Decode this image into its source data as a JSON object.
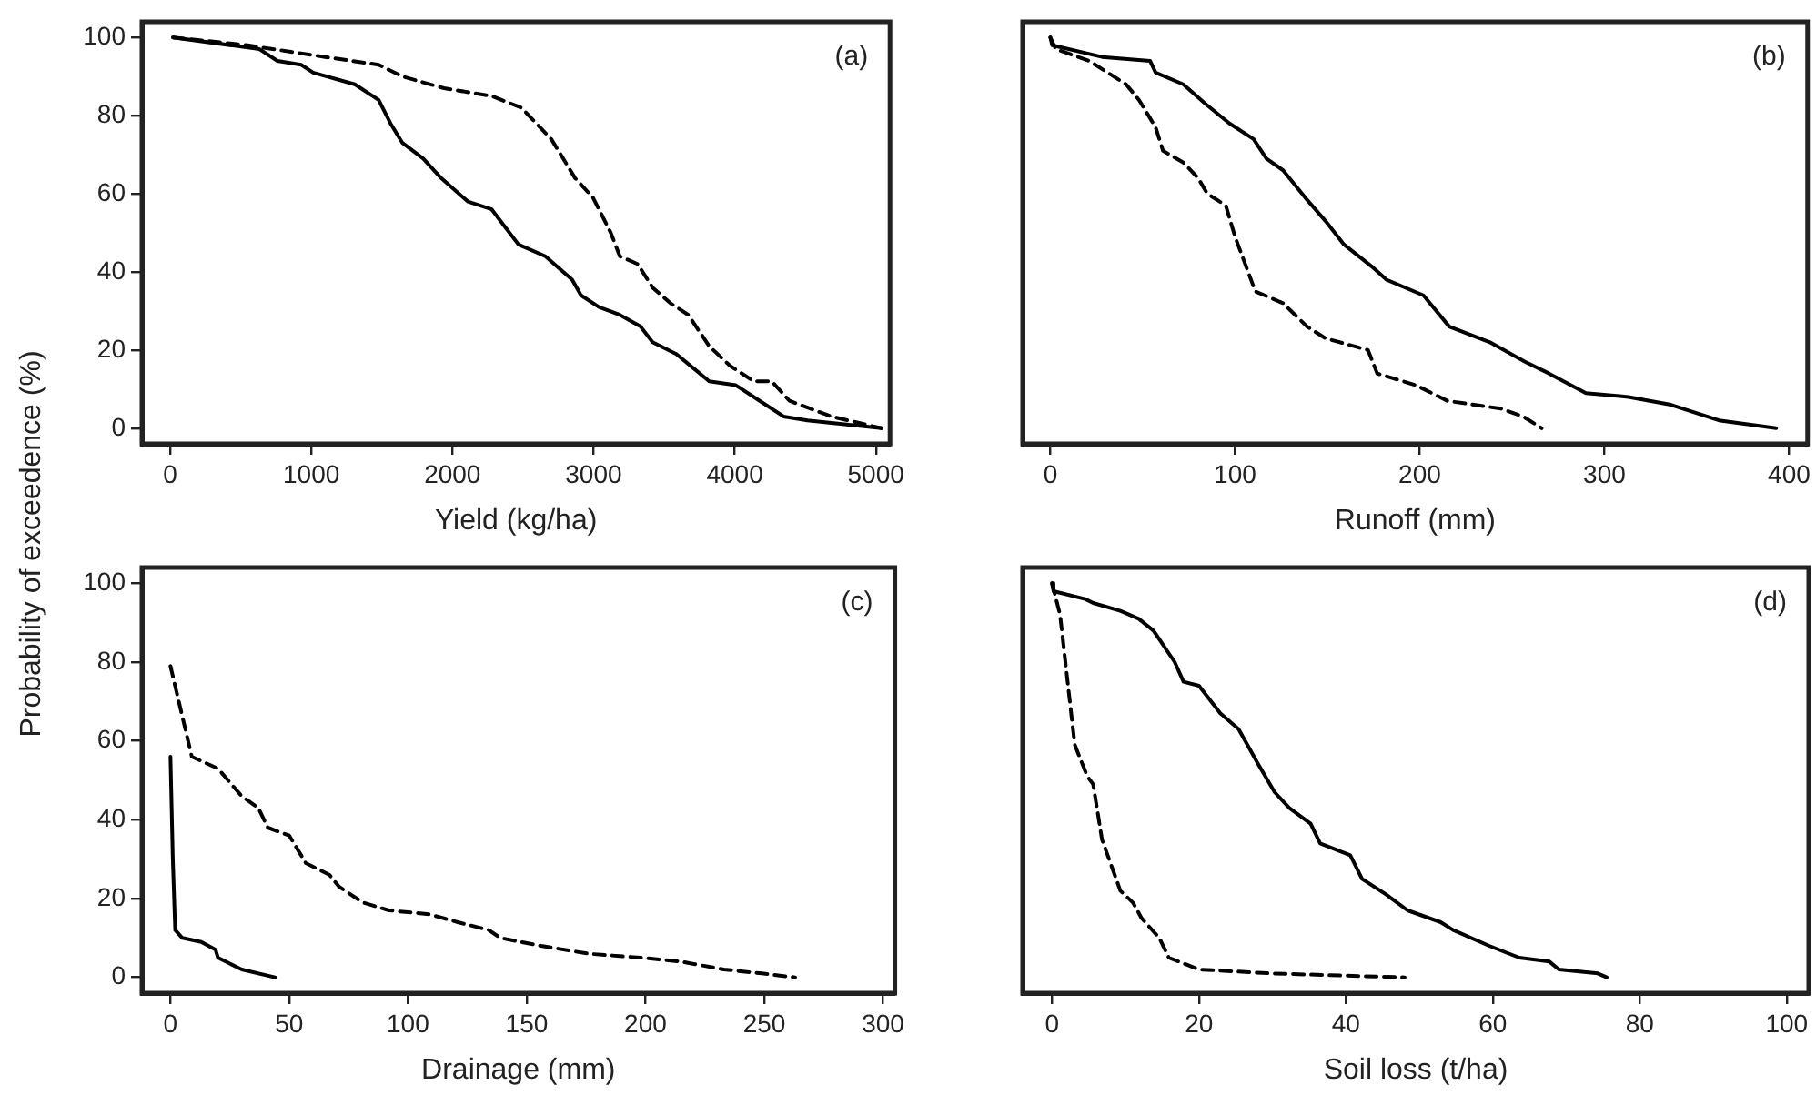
{
  "chart_data": [
    {
      "type": "line",
      "xlabel": "Yield (kg/ha)",
      "ylabel": "Probability of exceedence (%)",
      "annotations": [
        "(a)"
      ],
      "xlim": [
        -200,
        5100
      ],
      "xticks": [
        0,
        1000,
        2000,
        3000,
        4000,
        5000
      ],
      "ylim": [
        -4,
        104
      ],
      "yticks": [
        0,
        20,
        40,
        60,
        80,
        100
      ],
      "series": [
        {
          "color": "#000000",
          "line_style": "solid",
          "x": [
            20,
            633,
            760,
            928,
            1013,
            1308,
            1477,
            1561,
            1646,
            1793,
            1920,
            2110,
            2278,
            2468,
            2658,
            2848,
            2911,
            3038,
            3186,
            3333,
            3418,
            3586,
            3819,
            4008,
            4177,
            4346,
            4515,
            5040
          ],
          "values": [
            100,
            97,
            94,
            93,
            91,
            88,
            84,
            78,
            73,
            69,
            64,
            58,
            56,
            47,
            44,
            38,
            34,
            31,
            29,
            26,
            22,
            19,
            12,
            11,
            7,
            3,
            2,
            0
          ]
        },
        {
          "color": "#000000",
          "line_style": "dashed",
          "x": [
            20,
            549,
            1097,
            1477,
            1646,
            1941,
            2278,
            2489,
            2700,
            2869,
            2996,
            3122,
            3186,
            3312,
            3418,
            3544,
            3671,
            3819,
            3966,
            4135,
            4262,
            4388,
            4684,
            5040
          ],
          "values": [
            100,
            98,
            95,
            93,
            90,
            87,
            85,
            82,
            74,
            64,
            59,
            50,
            44,
            42,
            36,
            32,
            29,
            21,
            16,
            12,
            12,
            7,
            3,
            0
          ]
        }
      ]
    },
    {
      "type": "line",
      "xlabel": "Runoff (mm)",
      "annotations": [
        "(b)"
      ],
      "tick_labels": "x",
      "xlim": [
        -15,
        410
      ],
      "xticks": [
        0,
        100,
        200,
        300,
        400
      ],
      "ylim": [
        -4,
        104
      ],
      "series": [
        {
          "color": "#000000",
          "line_style": "solid",
          "x": [
            0,
            1,
            28,
            54,
            57,
            72,
            84,
            97,
            110,
            117,
            126,
            138,
            149,
            159,
            175,
            182,
            202,
            216,
            238,
            257,
            270,
            290,
            313,
            336,
            362,
            393
          ],
          "values": [
            100,
            98,
            95,
            94,
            91,
            88,
            83,
            78,
            74,
            69,
            66,
            59,
            53,
            47,
            41,
            38,
            34,
            26,
            22,
            17,
            14,
            9,
            8,
            6,
            2,
            0
          ]
        },
        {
          "color": "#000000",
          "line_style": "dashed",
          "x": [
            0,
            3,
            21,
            41,
            48,
            57,
            61,
            72,
            80,
            85,
            95,
            100,
            111,
            126,
            139,
            149,
            172,
            177,
            198,
            215,
            244,
            256,
            266
          ],
          "values": [
            100,
            97,
            94,
            88,
            84,
            77,
            71,
            68,
            64,
            60,
            57,
            49,
            35,
            32,
            26,
            23,
            20,
            14,
            11,
            7,
            5,
            3,
            0
          ]
        }
      ]
    },
    {
      "type": "line",
      "xlabel": "Drainage (mm)",
      "annotations": [
        "(c)"
      ],
      "xlim": [
        -12,
        305
      ],
      "xticks": [
        0,
        50,
        100,
        150,
        200,
        250,
        300
      ],
      "ylim": [
        -4,
        104
      ],
      "yticks": [
        0,
        20,
        40,
        60,
        80,
        100
      ],
      "series": [
        {
          "color": "#000000",
          "line_style": "solid",
          "x": [
            0,
            1,
            2,
            5,
            13,
            19,
            20,
            30,
            44
          ],
          "values": [
            56,
            30,
            12,
            10,
            9,
            7,
            5,
            2,
            0
          ]
        },
        {
          "color": "#000000",
          "line_style": "dashed",
          "x": [
            0,
            9,
            20,
            30,
            37,
            41,
            50,
            57,
            67,
            71,
            81,
            92,
            109,
            121,
            134,
            139,
            156,
            176,
            198,
            215,
            233,
            249,
            263
          ],
          "values": [
            79,
            56,
            53,
            46,
            43,
            38,
            36,
            29,
            26,
            23,
            19,
            17,
            16,
            14,
            12,
            10,
            8,
            6,
            5,
            4,
            2,
            1,
            0
          ]
        }
      ]
    },
    {
      "type": "line",
      "xlabel": "Soil loss (t/ha)",
      "annotations": [
        "(d)"
      ],
      "tick_labels": "x",
      "xlim": [
        -4,
        103
      ],
      "xticks": [
        0,
        20,
        40,
        60,
        80,
        100
      ],
      "ylim": [
        -4,
        104
      ],
      "series": [
        {
          "color": "#000000",
          "line_style": "solid",
          "x": [
            0,
            0.2,
            4.5,
            5.6,
            9.3,
            11.8,
            13.8,
            16.7,
            17.9,
            20,
            22.9,
            25.4,
            28.1,
            30.3,
            32.3,
            35.2,
            36.5,
            40.6,
            42.2,
            45.5,
            48.4,
            52.9,
            54.6,
            59.5,
            63.6,
            67.7,
            69,
            74.3,
            75.5
          ],
          "values": [
            100,
            98,
            96,
            95,
            93,
            91,
            88,
            80,
            75,
            74,
            67,
            63,
            54,
            47,
            43,
            39,
            34,
            31,
            25,
            21,
            17,
            14,
            12,
            8,
            5,
            4,
            2,
            1,
            0
          ]
        },
        {
          "color": "#000000",
          "line_style": "dashed",
          "x": [
            0,
            1.1,
            2,
            3.1,
            4.8,
            5.6,
            6.8,
            9.3,
            11,
            12.2,
            14.6,
            15.9,
            20,
            29.9,
            48
          ],
          "values": [
            100,
            92,
            77,
            59,
            51,
            49,
            35,
            22,
            19,
            15,
            10,
            5,
            2,
            1,
            0
          ]
        }
      ]
    }
  ]
}
